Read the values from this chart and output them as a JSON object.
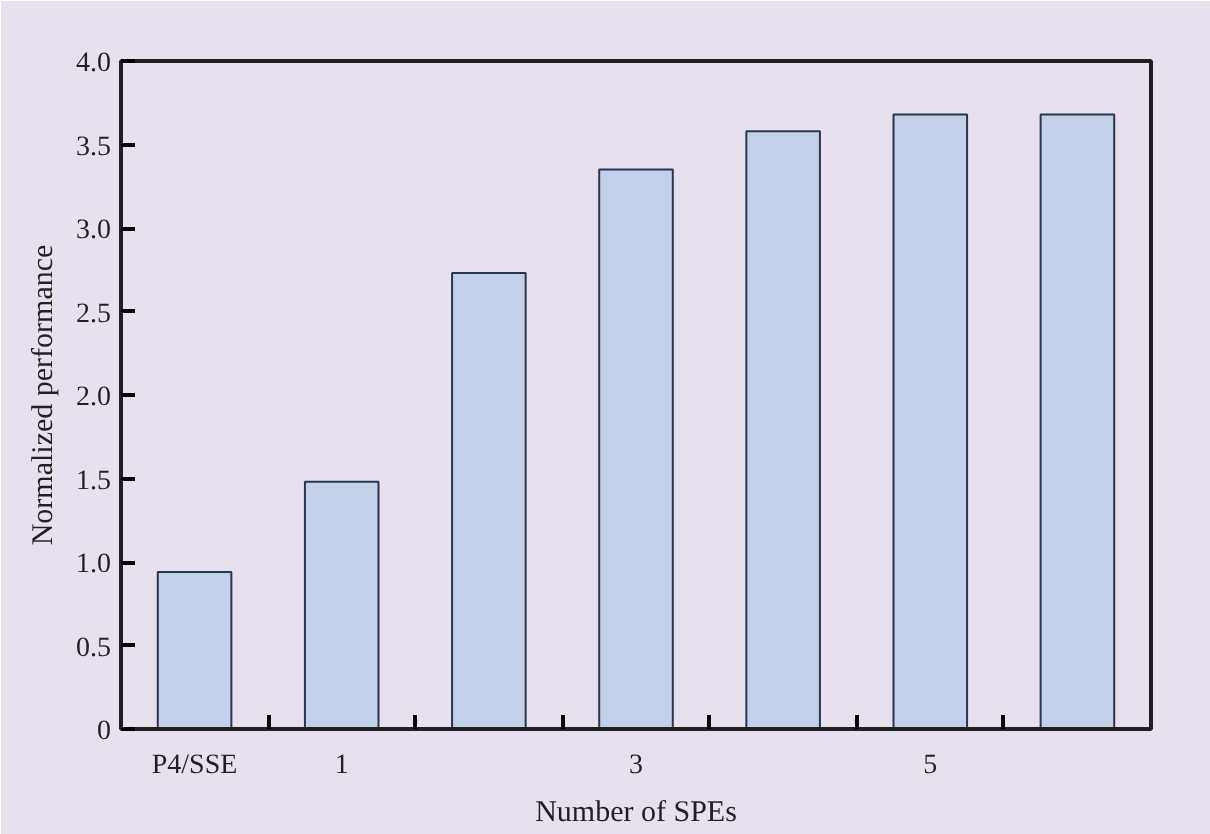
{
  "chart_data": {
    "type": "bar",
    "xlabel": "Number of SPEs",
    "ylabel": "Normalized performance",
    "categories": [
      "P4/SSE",
      "1",
      null,
      "3",
      null,
      "5",
      null
    ],
    "values": [
      0.94,
      1.48,
      2.73,
      3.35,
      3.58,
      3.68,
      3.68
    ],
    "color": "#c2d0e8",
    "ylim": [
      0,
      4.0
    ],
    "yticks": [
      {
        "value": 0,
        "label": "0"
      },
      {
        "value": 0.5,
        "label": "0.5"
      },
      {
        "value": 1,
        "label": "1.0"
      },
      {
        "value": 1.5,
        "label": "1.5"
      },
      {
        "value": 2,
        "label": "2.0"
      },
      {
        "value": 2.5,
        "label": "2.5"
      },
      {
        "value": 3,
        "label": "3.0"
      },
      {
        "value": 3.5,
        "label": "3.5"
      },
      {
        "value": 4,
        "label": "4.0"
      }
    ],
    "grid": false
  }
}
